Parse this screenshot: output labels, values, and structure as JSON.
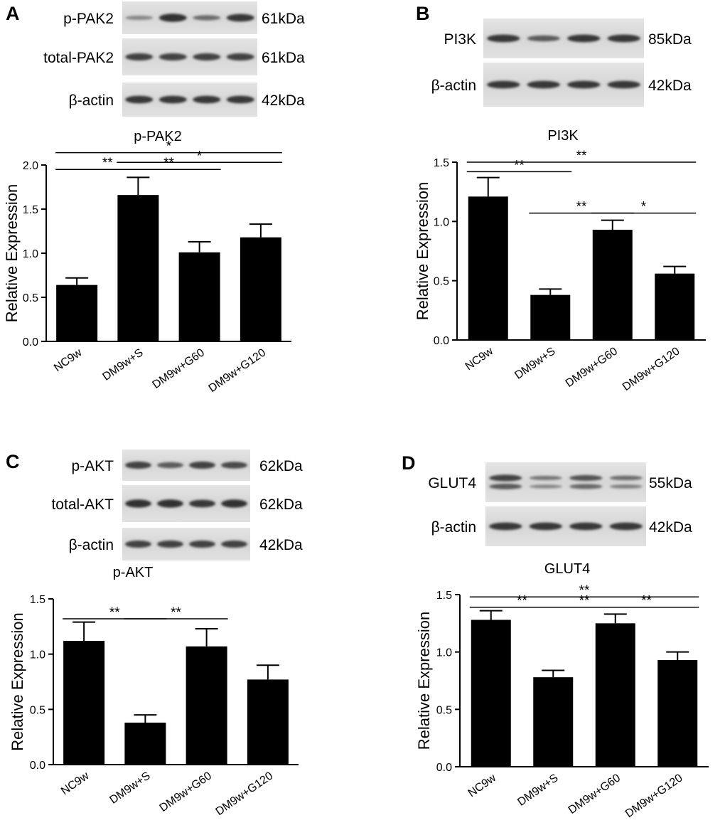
{
  "panels": [
    {
      "letter": "A",
      "blots": [
        {
          "label": "p-PAK2",
          "kda": "61kDa",
          "intensity": [
            0.45,
            0.95,
            0.6,
            0.9
          ]
        },
        {
          "label": "total-PAK2",
          "kda": "61kDa",
          "intensity": [
            0.85,
            0.85,
            0.85,
            0.85
          ]
        },
        {
          "label": "β-actin",
          "kda": "42kDa",
          "intensity": [
            0.9,
            0.9,
            0.9,
            0.9
          ]
        }
      ],
      "chart_data": {
        "type": "bar",
        "title": "p-PAK2",
        "ylabel": "Relative Expression",
        "categories": [
          "NC9w",
          "DM9w+S",
          "DM9w+G60",
          "DM9w+G120"
        ],
        "values": [
          0.64,
          1.66,
          1.01,
          1.18
        ],
        "errors": [
          0.08,
          0.2,
          0.12,
          0.15
        ],
        "ylim": [
          0,
          2.0
        ],
        "yticks": [
          "0.0",
          "0.5",
          "1.0",
          "1.5",
          "2.0"
        ],
        "significance": [
          {
            "from": 0,
            "to": 1,
            "label": "**",
            "y": 1.95
          },
          {
            "from": 1,
            "to": 2,
            "label": "**",
            "y": 1.95
          },
          {
            "from": 1,
            "to": 3,
            "label": "*",
            "y": 2.03
          },
          {
            "from": 0,
            "to": 3,
            "label": "*",
            "y": 2.14
          }
        ]
      }
    },
    {
      "letter": "B",
      "blots": [
        {
          "label": "PI3K",
          "kda": "85kDa",
          "intensity": [
            0.9,
            0.7,
            0.9,
            0.9
          ]
        },
        {
          "label": "β-actin",
          "kda": "42kDa",
          "intensity": [
            0.9,
            0.9,
            0.9,
            0.9
          ]
        }
      ],
      "chart_data": {
        "type": "bar",
        "title": "PI3K",
        "ylabel": "Relative Expression",
        "categories": [
          "NC9w",
          "DM9w+S",
          "DM9w+G60",
          "DM9w+G120"
        ],
        "values": [
          1.21,
          0.38,
          0.93,
          0.56
        ],
        "errors": [
          0.16,
          0.05,
          0.08,
          0.06
        ],
        "ylim": [
          0,
          1.5
        ],
        "yticks": [
          "0.0",
          "0.5",
          "1.0",
          "1.5"
        ],
        "significance": [
          {
            "from": 0,
            "to": 3,
            "label": "**",
            "y": 1.5
          },
          {
            "from": 0,
            "to": 1,
            "label": "**",
            "y": 1.42
          },
          {
            "from": 1,
            "to": 2,
            "label": "**",
            "y": 1.07
          },
          {
            "from": 2,
            "to": 3,
            "label": "*",
            "y": 1.07
          }
        ]
      }
    },
    {
      "letter": "C",
      "blots": [
        {
          "label": "p-AKT",
          "kda": "62kDa",
          "intensity": [
            0.85,
            0.7,
            0.85,
            0.8
          ]
        },
        {
          "label": "total-AKT",
          "kda": "62kDa",
          "intensity": [
            0.95,
            0.95,
            0.9,
            0.95
          ]
        },
        {
          "label": "β-actin",
          "kda": "42kDa",
          "intensity": [
            0.85,
            0.85,
            0.85,
            0.85
          ]
        }
      ],
      "chart_data": {
        "type": "bar",
        "title": "p-AKT",
        "ylabel": "Relative Expression",
        "categories": [
          "NC9w",
          "DM9w+S",
          "DM9w+G60",
          "DM9w+G120"
        ],
        "values": [
          1.12,
          0.38,
          1.07,
          0.77
        ],
        "errors": [
          0.17,
          0.07,
          0.16,
          0.13
        ],
        "ylim": [
          0,
          1.5
        ],
        "yticks": [
          "0.0",
          "0.5",
          "1.0",
          "1.5"
        ],
        "significance": [
          {
            "from": 0,
            "to": 1,
            "label": "**",
            "y": 1.32
          },
          {
            "from": 1,
            "to": 2,
            "label": "**",
            "y": 1.32
          }
        ]
      }
    },
    {
      "letter": "D",
      "blots": [
        {
          "label": "GLUT4",
          "kda": "55kDa",
          "intensity": [
            0.85,
            0.55,
            0.75,
            0.6
          ],
          "doublet": true
        },
        {
          "label": "β-actin",
          "kda": "42kDa",
          "intensity": [
            0.9,
            0.9,
            0.9,
            0.9
          ]
        }
      ],
      "chart_data": {
        "type": "bar",
        "title": "GLUT4",
        "ylabel": "Relative Expression",
        "categories": [
          "NC9w",
          "DM9w+S",
          "DM9w+G60",
          "DM9w+G120"
        ],
        "values": [
          1.28,
          0.78,
          1.25,
          0.93
        ],
        "errors": [
          0.08,
          0.06,
          0.08,
          0.07
        ],
        "ylim": [
          0,
          1.5
        ],
        "yticks": [
          "0.0",
          "0.5",
          "1.0",
          "1.5"
        ],
        "significance": [
          {
            "from": 0,
            "to": 3,
            "label": "**",
            "y": 1.48
          },
          {
            "from": 0,
            "to": 1,
            "label": "**",
            "y": 1.39
          },
          {
            "from": 1,
            "to": 2,
            "label": "**",
            "y": 1.39
          },
          {
            "from": 2,
            "to": 3,
            "label": "**",
            "y": 1.39
          }
        ]
      }
    }
  ]
}
